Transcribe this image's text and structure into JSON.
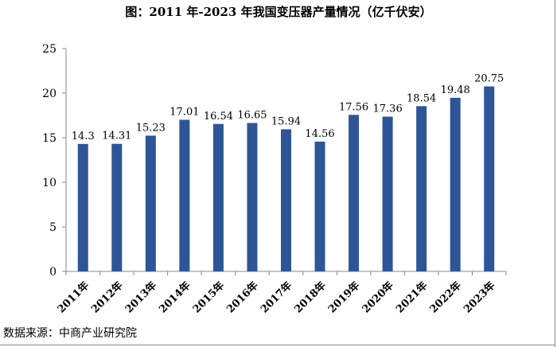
{
  "chart_data": {
    "type": "bar",
    "title": "图：2011 年-2023 年我国变压器产量情况（亿千伏安）",
    "categories": [
      "2011年",
      "2012年",
      "2013年",
      "2014年",
      "2015年",
      "2016年",
      "2017年",
      "2018年",
      "2019年",
      "2020年",
      "2021年",
      "2022年",
      "2023年"
    ],
    "values": [
      14.3,
      14.31,
      15.23,
      17.01,
      16.54,
      16.65,
      15.94,
      14.56,
      17.56,
      17.36,
      18.54,
      19.48,
      20.75
    ],
    "value_labels": [
      "14.3",
      "14.31",
      "15.23",
      "17.01",
      "16.54",
      "16.65",
      "15.94",
      "14.56",
      "17.56",
      "17.36",
      "18.54",
      "19.48",
      "20.75"
    ],
    "yticks": [
      "0",
      "5",
      "10",
      "15",
      "20",
      "25"
    ],
    "ylim": [
      0,
      25
    ],
    "xlabel": "",
    "ylabel": "",
    "grid": false,
    "legend": "none",
    "bar_color": "#2e5597"
  },
  "source": "数据来源：中商产业研究院"
}
